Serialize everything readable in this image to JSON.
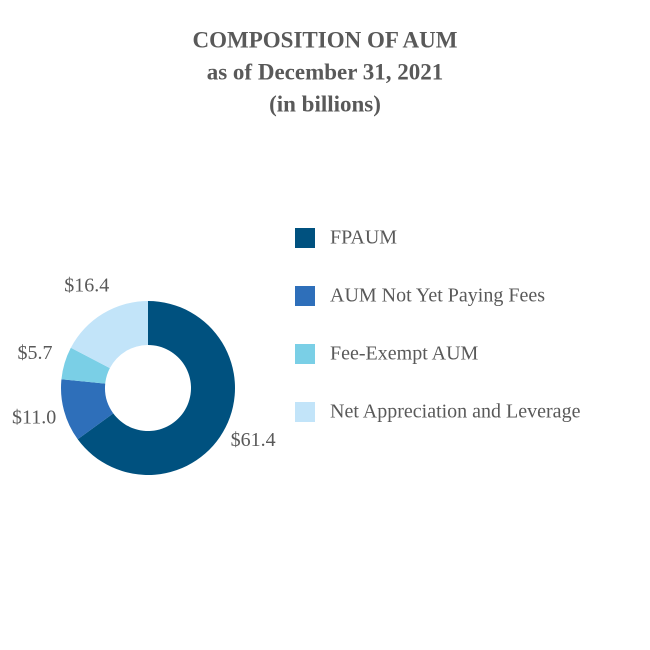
{
  "chart_data": {
    "type": "donut",
    "title": "COMPOSITION OF AUM",
    "subtitle": [
      "as of December 31, 2021",
      "(in billions)"
    ],
    "categories": [
      "FPAUM",
      "AUM Not Yet Paying Fees",
      "Fee-Exempt AUM",
      "Net Appreciation and Leverage"
    ],
    "values": [
      61.4,
      11.0,
      5.7,
      16.4
    ],
    "value_labels": [
      "$61.4",
      "$11.0",
      "$5.7",
      "$16.4"
    ],
    "colors": [
      "#00517f",
      "#2e6fba",
      "#7acfe6",
      "#c2e4f9"
    ]
  }
}
